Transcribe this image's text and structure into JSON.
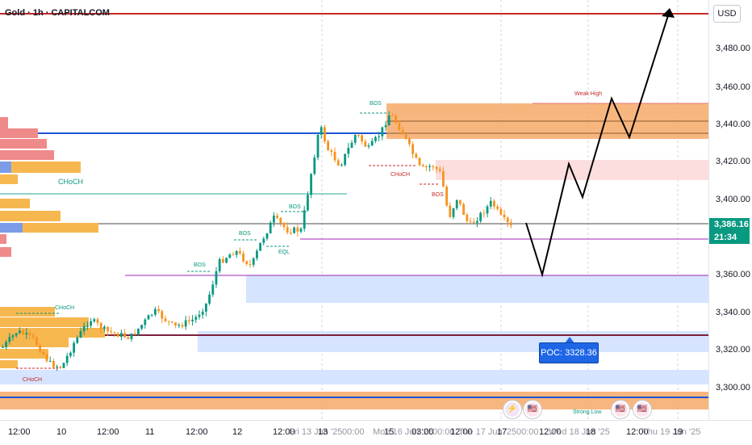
{
  "header": {
    "title": "Gold · 1h · CAPITALCOM"
  },
  "price_axis": {
    "currency": "USD",
    "ticks": [
      "3,480.00",
      "3,460.00",
      "3,440.00",
      "3,420.00",
      "3,400.00",
      "3,360.00",
      "3,340.00",
      "3,320.00",
      "3,300.00"
    ],
    "last_price": "3,386.16",
    "countdown": "21:34"
  },
  "time_axis": {
    "ticks": [
      "12:00",
      "10",
      "12:00",
      "11",
      "12:00",
      "12",
      "12:00",
      "13",
      "15",
      "03:00",
      "12:00",
      "17",
      "12:00",
      "18",
      "12:00",
      "19"
    ],
    "ghost_labels": [
      "Fri 13 Jun '25",
      "00:00",
      "Mon 16 Jun '25",
      "00:00",
      "Tue 17 Jun '25",
      "00:00",
      "Wed 18 Jun '25",
      "Thu 19 Jun '25"
    ]
  },
  "annotations": {
    "weak_high": "Weak High",
    "strong_low": "Strong Low",
    "choch": "CHoCH",
    "bos": "BOS",
    "eql": "EQL",
    "poc": "POC: 3328.36"
  },
  "events": [
    {
      "name": "lightning-event",
      "glyph": "⚡",
      "color": "#9c27b0"
    },
    {
      "name": "us-flag-event",
      "glyph": "🇺🇸",
      "color": "#e91e63"
    }
  ],
  "colors": {
    "up": "#089981",
    "down": "#f7931e",
    "resistance": "#c62828",
    "support_zone": "#d6e4ff",
    "supply_zone": "#f7a968",
    "blue_line": "#1e55d6",
    "purple_line": "#9c27b0"
  }
}
